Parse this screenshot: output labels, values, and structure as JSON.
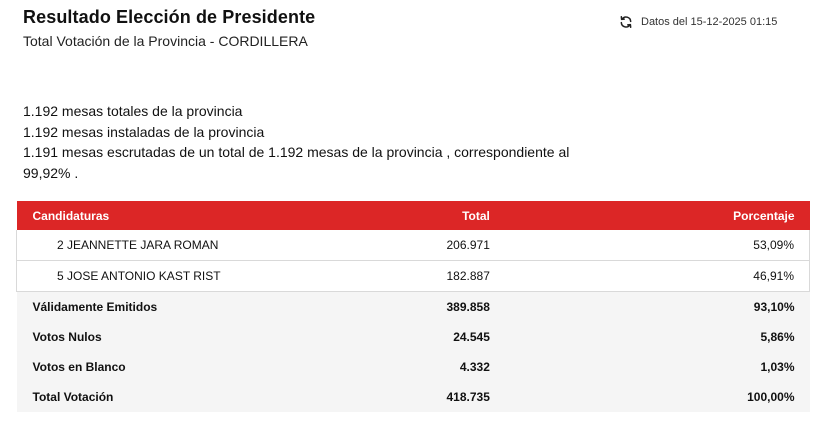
{
  "header": {
    "title": "Resultado Elección de Presidente",
    "subtitle": "Total Votación de la Provincia - CORDILLERA",
    "updated_label": "Datos del 15-12-2025 01:15",
    "refresh_icon": "refresh-icon"
  },
  "info": {
    "line1": "1.192 mesas totales de la provincia",
    "line2": "1.192 mesas instaladas de la provincia",
    "line3": "1.191 mesas escrutadas de un total de 1.192 mesas de la provincia , correspondiente al 99,92% ."
  },
  "table": {
    "headers": {
      "candidates": "Candidaturas",
      "total": "Total",
      "percent": "Porcentaje"
    },
    "candidates": [
      {
        "name": "2 JEANNETTE JARA ROMAN",
        "total": "206.971",
        "percent": "53,09%"
      },
      {
        "name": "5 JOSE ANTONIO KAST RIST",
        "total": "182.887",
        "percent": "46,91%"
      }
    ],
    "summary": [
      {
        "label": "Válidamente Emitidos",
        "total": "389.858",
        "percent": "93,10%"
      },
      {
        "label": "Votos Nulos",
        "total": "24.545",
        "percent": "5,86%"
      },
      {
        "label": "Votos en Blanco",
        "total": "4.332",
        "percent": "1,03%"
      },
      {
        "label": "Total Votación",
        "total": "418.735",
        "percent": "100,00%"
      }
    ]
  },
  "colors": {
    "header_bg": "#dc2626",
    "summary_bg": "#f5f5f5"
  }
}
